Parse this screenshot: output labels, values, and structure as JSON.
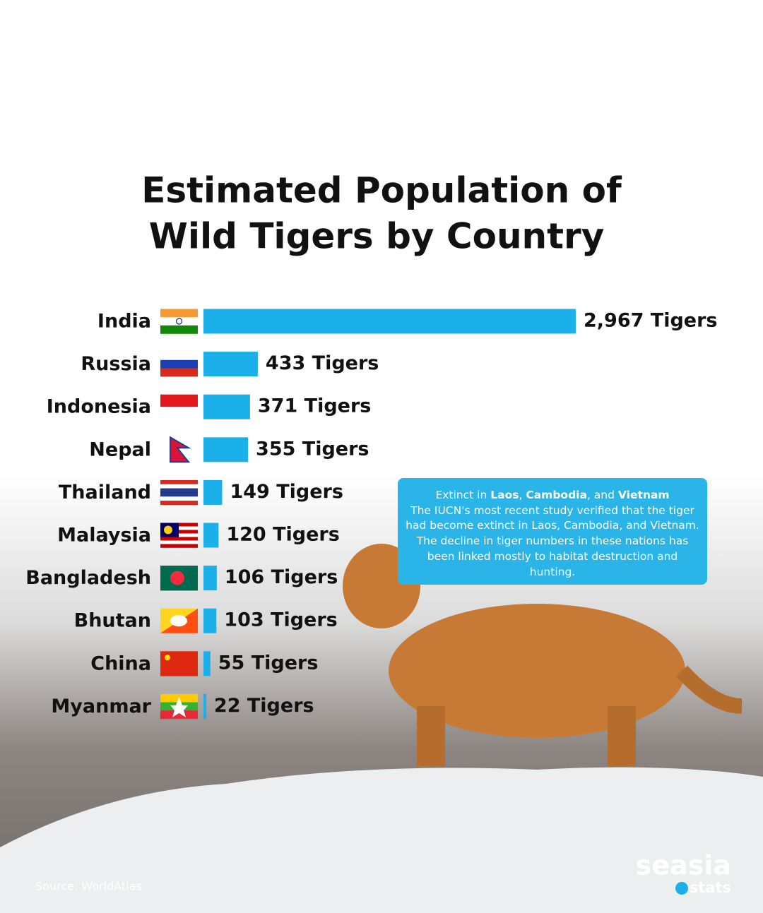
{
  "chart_data": {
    "type": "bar",
    "orientation": "horizontal",
    "title": [
      "Estimated Population of",
      "Wild Tigers by Country"
    ],
    "categories": [
      "India",
      "Russia",
      "Indonesia",
      "Nepal",
      "Thailand",
      "Malaysia",
      "Bangladesh",
      "Bhutan",
      "China",
      "Myanmar"
    ],
    "values": [
      2967,
      433,
      371,
      355,
      149,
      120,
      106,
      103,
      55,
      22
    ],
    "value_labels": [
      "2,967 Tigers",
      "433 Tigers",
      "371 Tigers",
      "355 Tigers",
      "149 Tigers",
      "120 Tigers",
      "106 Tigers",
      "103 Tigers",
      "55 Tigers",
      "22 Tigers"
    ],
    "color": "#1bb0ea",
    "annotation": {
      "heading": [
        "Extinct in",
        "Laos",
        ",",
        "Cambodia",
        ", and",
        "Vietnam"
      ],
      "body": "The IUCN's most recent study verified that the tiger had become extinct in Laos, Cambodia, and Vietnam. The decline in tiger numbers in these nations has been linked mostly to habitat destruction and hunting."
    },
    "source": "Source: WorldAtlas",
    "brand": [
      "seasia",
      "stats"
    ]
  }
}
